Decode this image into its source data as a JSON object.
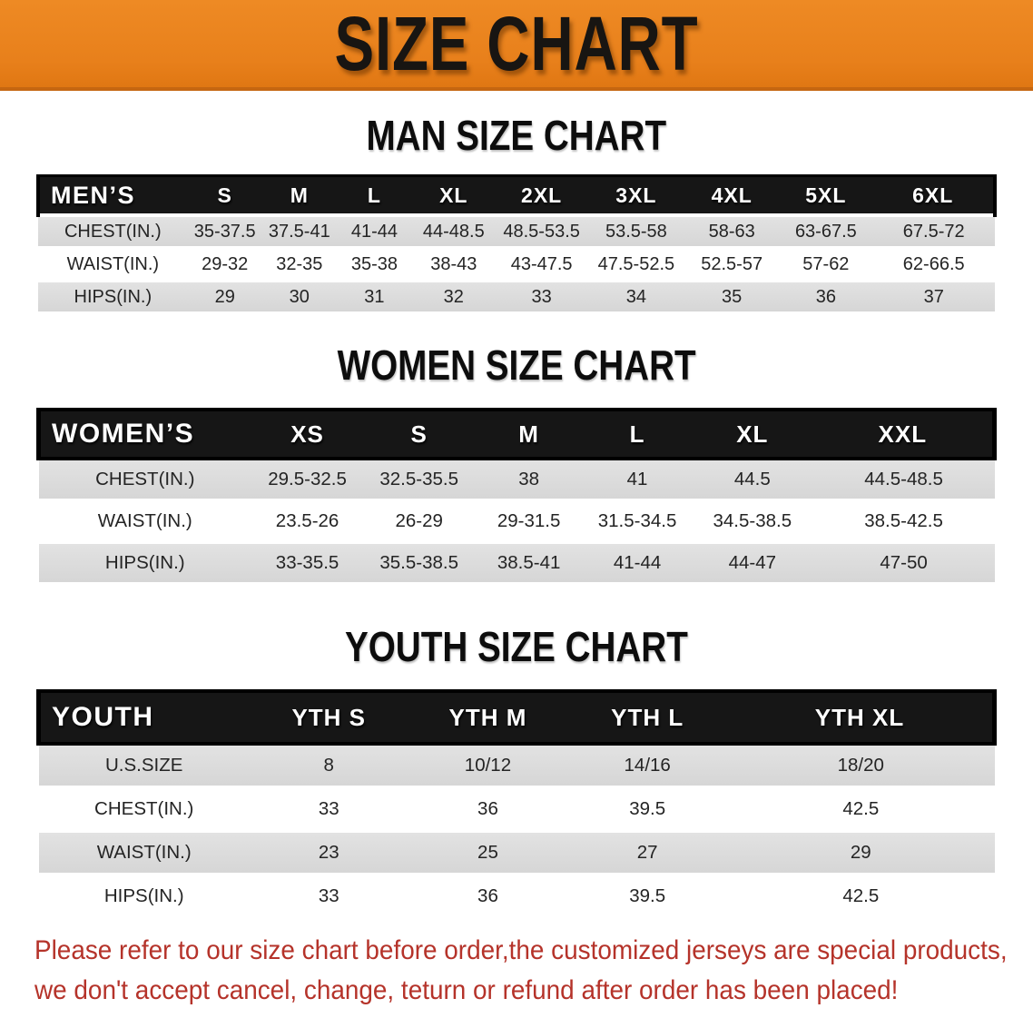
{
  "banner": {
    "title": "SIZE CHART",
    "background_color": "#e8801b",
    "title_color": "#181512"
  },
  "sections": [
    {
      "heading": "MAN SIZE CHART",
      "corner_label": "MEN’S",
      "columns": [
        "S",
        "M",
        "L",
        "XL",
        "2XL",
        "3XL",
        "4XL",
        "5XL",
        "6XL"
      ],
      "rows": [
        {
          "label": "CHEST(IN.)",
          "values": [
            "35-37.5",
            "37.5-41",
            "41-44",
            "44-48.5",
            "48.5-53.5",
            "53.5-58",
            "58-63",
            "63-67.5",
            "67.5-72"
          ]
        },
        {
          "label": "WAIST(IN.)",
          "values": [
            "29-32",
            "32-35",
            "35-38",
            "38-43",
            "43-47.5",
            "47.5-52.5",
            "52.5-57",
            "57-62",
            "62-66.5"
          ]
        },
        {
          "label": "HIPS(IN.)",
          "values": [
            "29",
            "30",
            "31",
            "32",
            "33",
            "34",
            "35",
            "36",
            "37"
          ]
        }
      ]
    },
    {
      "heading": "WOMEN SIZE CHART",
      "corner_label": "WOMEN’S",
      "columns": [
        "XS",
        "S",
        "M",
        "L",
        "XL",
        "XXL"
      ],
      "rows": [
        {
          "label": "CHEST(IN.)",
          "values": [
            "29.5-32.5",
            "32.5-35.5",
            "38",
            "41",
            "44.5",
            "44.5-48.5"
          ]
        },
        {
          "label": "WAIST(IN.)",
          "values": [
            "23.5-26",
            "26-29",
            "29-31.5",
            "31.5-34.5",
            "34.5-38.5",
            "38.5-42.5"
          ]
        },
        {
          "label": "HIPS(IN.)",
          "values": [
            "33-35.5",
            "35.5-38.5",
            "38.5-41",
            "41-44",
            "44-47",
            "47-50"
          ]
        }
      ]
    },
    {
      "heading": "YOUTH SIZE CHART",
      "corner_label": "YOUTH",
      "columns": [
        "YTH S",
        "YTH M",
        "YTH L",
        "YTH XL"
      ],
      "rows": [
        {
          "label": "U.S.SIZE",
          "values": [
            "8",
            "10/12",
            "14/16",
            "18/20"
          ]
        },
        {
          "label": "CHEST(IN.)",
          "values": [
            "33",
            "36",
            "39.5",
            "42.5"
          ]
        },
        {
          "label": "WAIST(IN.)",
          "values": [
            "23",
            "25",
            "27",
            "29"
          ]
        },
        {
          "label": "HIPS(IN.)",
          "values": [
            "33",
            "36",
            "39.5",
            "42.5"
          ]
        }
      ]
    }
  ],
  "table_colors": {
    "header_background": "#161616",
    "header_text": "#ffffff",
    "row_shaded": "#dadada",
    "row_plain": "#ffffff",
    "cell_text": "#242424"
  },
  "disclaimer": {
    "line1": "Please refer to our size chart before order,the customized jerseys are special products,",
    "line2": "we don't accept cancel, change, teturn or refund after order has been placed!",
    "color": "#b5332a"
  }
}
